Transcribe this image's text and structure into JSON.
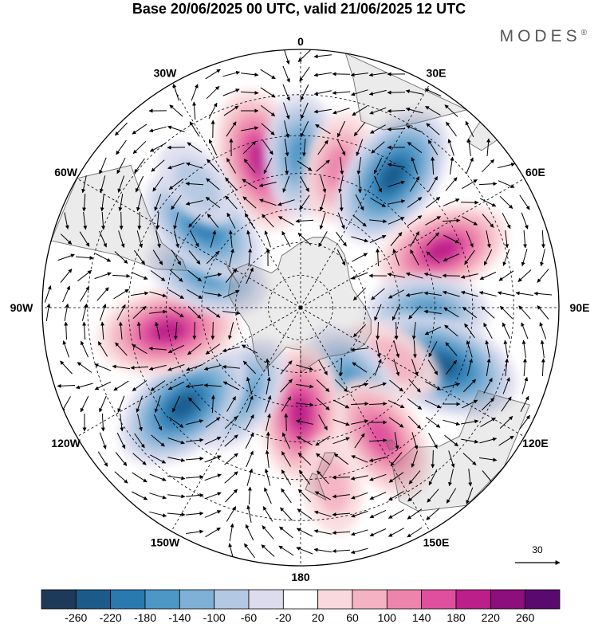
{
  "title": "Base 20/06/2025 00 UTC, valid 21/06/2025 12 UTC",
  "brand": "MODES",
  "brand_mark": "®",
  "map": {
    "projection": "south-polar-stereographic",
    "longitude_labels": [
      {
        "text": "0",
        "lon": 0
      },
      {
        "text": "30E",
        "lon": 30
      },
      {
        "text": "60E",
        "lon": 60
      },
      {
        "text": "90E",
        "lon": 90
      },
      {
        "text": "120E",
        "lon": 120
      },
      {
        "text": "150E",
        "lon": 150
      },
      {
        "text": "180",
        "lon": 180
      },
      {
        "text": "150W",
        "lon": -150
      },
      {
        "text": "120W",
        "lon": -120
      },
      {
        "text": "90W",
        "lon": -90
      },
      {
        "text": "60W",
        "lon": -60
      },
      {
        "text": "30W",
        "lon": -30
      }
    ],
    "anomaly_centers": [
      {
        "sign": "positive",
        "value": 200,
        "lon": -15,
        "lat": -45
      },
      {
        "sign": "negative",
        "value": -140,
        "lon": 0,
        "lat": -45
      },
      {
        "sign": "positive",
        "value": 100,
        "lon": 15,
        "lat": -47
      },
      {
        "sign": "negative",
        "value": -220,
        "lon": 35,
        "lat": -43
      },
      {
        "sign": "positive",
        "value": 180,
        "lon": 68,
        "lat": -45
      },
      {
        "sign": "negative",
        "value": -140,
        "lon": 92,
        "lat": -52
      },
      {
        "sign": "negative",
        "value": -240,
        "lon": 112,
        "lat": -45
      },
      {
        "sign": "positive",
        "value": 80,
        "lon": 120,
        "lat": -58
      },
      {
        "sign": "negative",
        "value": -140,
        "lon": 145,
        "lat": -62
      },
      {
        "sign": "positive",
        "value": 160,
        "lon": 148,
        "lat": -45
      },
      {
        "sign": "positive",
        "value": 180,
        "lon": 180,
        "lat": -58
      },
      {
        "sign": "positive",
        "value": 60,
        "lon": 170,
        "lat": -38
      },
      {
        "sign": "negative",
        "value": -140,
        "lon": -145,
        "lat": -58
      },
      {
        "sign": "negative",
        "value": -220,
        "lon": -130,
        "lat": -45
      },
      {
        "sign": "positive",
        "value": 200,
        "lon": -100,
        "lat": -50
      },
      {
        "sign": "negative",
        "value": -140,
        "lon": -70,
        "lat": -60
      },
      {
        "sign": "negative",
        "value": -180,
        "lon": -50,
        "lat": -52
      },
      {
        "sign": "negative",
        "value": -60,
        "lon": -40,
        "lat": -43
      }
    ],
    "vector_reference": {
      "label": "30"
    }
  },
  "colorbar": {
    "ticks": [
      "-260",
      "-220",
      "-180",
      "-140",
      "-100",
      "-60",
      "-20",
      "20",
      "60",
      "100",
      "140",
      "180",
      "220",
      "260"
    ],
    "colors": [
      "#1d3a5a",
      "#1c5a8a",
      "#2a7ab0",
      "#4c97c6",
      "#7fb0d6",
      "#b3c8e2",
      "#dcdcee",
      "#ffffff",
      "#f9d9dc",
      "#f4b3c1",
      "#ec84ac",
      "#df4f9d",
      "#bc1e8a",
      "#8c0f7d",
      "#5a0a6e"
    ]
  },
  "colors": {
    "land": "#ebebeb",
    "coast": "#777777",
    "grid": "#000000"
  }
}
